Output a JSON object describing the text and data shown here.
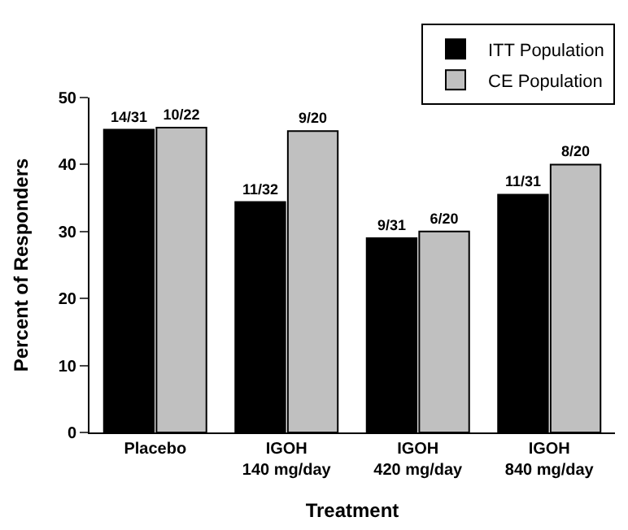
{
  "chart_data": {
    "type": "bar",
    "xlabel": "Treatment",
    "ylabel": "Percent of Responders",
    "categories": [
      "Placebo",
      "IGOH\n140 mg/day",
      "IGOH\n420 mg/day",
      "IGOH\n840 mg/day"
    ],
    "series": [
      {
        "name": "ITT Population",
        "color": "#000000",
        "values": [
          45.2,
          34.4,
          29.0,
          35.5
        ],
        "value_labels": [
          "14/31",
          "11/32",
          "9/31",
          "11/31"
        ]
      },
      {
        "name": "CE Population",
        "color": "#c0c0c0",
        "values": [
          45.5,
          45.0,
          30.0,
          40.0
        ],
        "value_labels": [
          "10/22",
          "9/20",
          "6/20",
          "8/20"
        ]
      }
    ],
    "ylim": [
      0,
      50
    ],
    "yticks": [
      0,
      10,
      20,
      30,
      40,
      50
    ],
    "legend": "top right"
  }
}
